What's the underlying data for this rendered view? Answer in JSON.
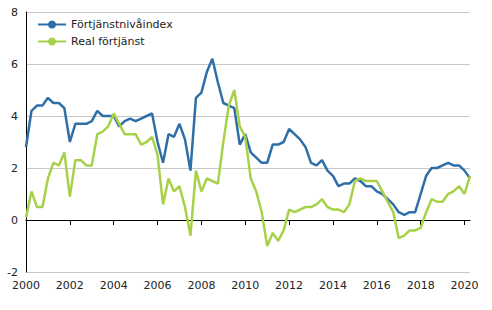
{
  "chart_data": {
    "type": "line",
    "x": [
      2000,
      2000.25,
      2000.5,
      2000.75,
      2001,
      2001.25,
      2001.5,
      2001.75,
      2002,
      2002.25,
      2002.5,
      2002.75,
      2003,
      2003.25,
      2003.5,
      2003.75,
      2004,
      2004.25,
      2004.5,
      2004.75,
      2005,
      2005.25,
      2005.5,
      2005.75,
      2006,
      2006.25,
      2006.5,
      2006.75,
      2007,
      2007.25,
      2007.5,
      2007.75,
      2008,
      2008.25,
      2008.5,
      2008.75,
      2009,
      2009.25,
      2009.5,
      2009.75,
      2010,
      2010.25,
      2010.5,
      2010.75,
      2011,
      2011.25,
      2011.5,
      2011.75,
      2012,
      2012.25,
      2012.5,
      2012.75,
      2013,
      2013.25,
      2013.5,
      2013.75,
      2014,
      2014.25,
      2014.5,
      2014.75,
      2015,
      2015.25,
      2015.5,
      2015.75,
      2016,
      2016.25,
      2016.5,
      2016.75,
      2017,
      2017.25,
      2017.5,
      2017.75,
      2018,
      2018.25,
      2018.5,
      2018.75,
      2019,
      2019.25,
      2019.5,
      2019.75,
      2020,
      2020.25
    ],
    "series": [
      {
        "name": "Förtjänstnivåindex",
        "color": "#2f6fa7",
        "values": [
          2.8,
          4.2,
          4.4,
          4.4,
          4.7,
          4.5,
          4.5,
          4.3,
          3.0,
          3.7,
          3.7,
          3.7,
          3.8,
          4.2,
          4.0,
          4.0,
          4.0,
          3.6,
          3.8,
          3.9,
          3.8,
          3.9,
          4.0,
          4.1,
          3.0,
          2.2,
          3.3,
          3.2,
          3.7,
          3.1,
          1.9,
          4.7,
          4.9,
          5.7,
          6.2,
          5.3,
          4.5,
          4.4,
          4.3,
          2.9,
          3.3,
          2.6,
          2.4,
          2.2,
          2.2,
          2.9,
          2.9,
          3.0,
          3.5,
          3.3,
          3.1,
          2.8,
          2.2,
          2.1,
          2.3,
          1.9,
          1.7,
          1.3,
          1.4,
          1.4,
          1.6,
          1.5,
          1.3,
          1.3,
          1.1,
          1.0,
          0.8,
          0.6,
          0.3,
          0.2,
          0.3,
          0.3,
          1.0,
          1.7,
          2.0,
          2.0,
          2.1,
          2.2,
          2.1,
          2.1,
          1.9,
          1.6
        ]
      },
      {
        "name": "Real förtjänst",
        "color": "#a8d14a",
        "values": [
          0.1,
          1.1,
          0.5,
          0.5,
          1.6,
          2.2,
          2.1,
          2.6,
          0.9,
          2.3,
          2.3,
          2.1,
          2.1,
          3.3,
          3.4,
          3.6,
          4.1,
          3.7,
          3.3,
          3.3,
          3.3,
          2.9,
          3.0,
          3.2,
          2.5,
          0.6,
          1.6,
          1.1,
          1.3,
          0.5,
          -0.6,
          1.9,
          1.1,
          1.6,
          1.5,
          1.4,
          3.0,
          4.4,
          5.0,
          3.6,
          3.2,
          1.6,
          1.1,
          0.3,
          -1.0,
          -0.5,
          -0.8,
          -0.4,
          0.4,
          0.3,
          0.4,
          0.5,
          0.5,
          0.6,
          0.8,
          0.5,
          0.4,
          0.4,
          0.3,
          0.6,
          1.5,
          1.6,
          1.5,
          1.5,
          1.5,
          1.1,
          0.7,
          0.3,
          -0.7,
          -0.6,
          -0.4,
          -0.4,
          -0.3,
          0.3,
          0.8,
          0.7,
          0.7,
          1.0,
          1.1,
          1.3,
          1.0,
          1.7
        ]
      }
    ],
    "xlim": [
      2000,
      2020.25
    ],
    "xticks": [
      2000,
      2002,
      2004,
      2006,
      2008,
      2010,
      2012,
      2014,
      2016,
      2018,
      2020
    ],
    "ylim": [
      -2,
      8
    ],
    "yticks": [
      -2,
      0,
      2,
      4,
      6,
      8
    ],
    "grid": true,
    "legend": "upper left"
  }
}
